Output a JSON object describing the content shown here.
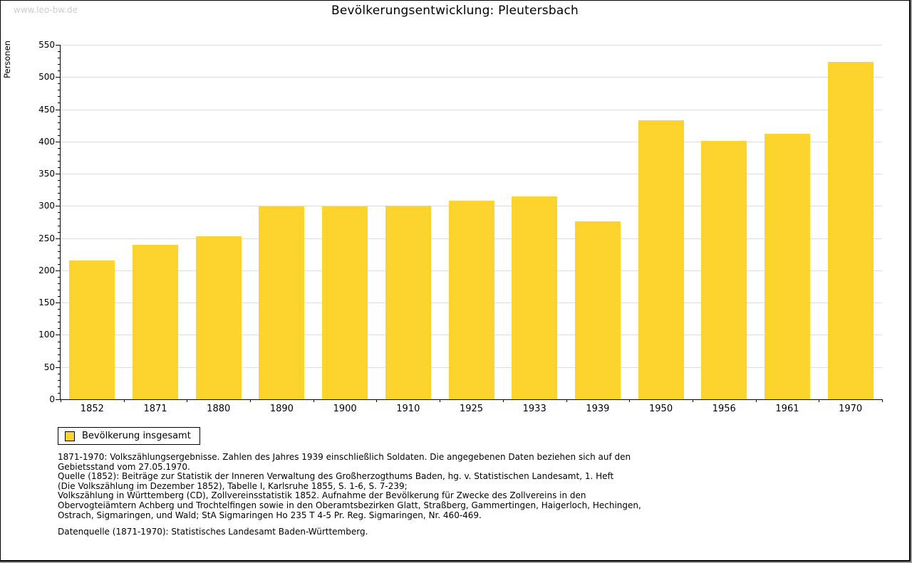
{
  "page": {
    "watermark": "www.leo-bw.de",
    "title": "Bevölkerungsentwicklung: Pleutersbach"
  },
  "chart_data": {
    "type": "bar",
    "title": "Bevölkerungsentwicklung: Pleutersbach",
    "xlabel": "",
    "ylabel": "Personen",
    "ylim": [
      0,
      550
    ],
    "ytick_step": 50,
    "y_minor_tick_step": 10,
    "grid": "horizontal",
    "legend_position": "bottom-left",
    "bar_color": "#FDD32D",
    "categories": [
      "1852",
      "1871",
      "1880",
      "1890",
      "1900",
      "1910",
      "1925",
      "1933",
      "1939",
      "1950",
      "1956",
      "1961",
      "1970"
    ],
    "values": [
      215,
      240,
      253,
      299,
      299,
      300,
      308,
      315,
      276,
      433,
      401,
      412,
      523
    ]
  },
  "legend": {
    "label": "Bevölkerung insgesamt"
  },
  "footnotes": {
    "lines": [
      "1871-1970: Volkszählungsergebnisse. Zahlen des Jahres 1939 einschließlich Soldaten. Die angegebenen Daten beziehen sich auf den",
      "Gebietsstand vom 27.05.1970.",
      "Quelle (1852): Beiträge zur Statistik der Inneren Verwaltung des Großherzogthums Baden, hg. v. Statistischen Landesamt, 1. Heft",
      "(Die Volkszählung im Dezember 1852), Tabelle I, Karlsruhe 1855, S. 1-6, S. 7-239;",
      "Volkszählung in Württemberg (CD), Zollvereinsstatistik 1852. Aufnahme der Bevölkerung für Zwecke des Zollvereins in den",
      "Obervogteiämtern Achberg und Trochtelfingen sowie in den Oberamtsbezirken Glatt, Straßberg, Gammertingen, Haigerloch, Hechingen,",
      "Ostrach, Sigmaringen, und Wald; StA Sigmaringen Ho 235 T 4-5 Pr. Reg. Sigmaringen, Nr. 460-469."
    ],
    "datasource": "Datenquelle (1871-1970): Statistisches Landesamt Baden-Württemberg."
  }
}
